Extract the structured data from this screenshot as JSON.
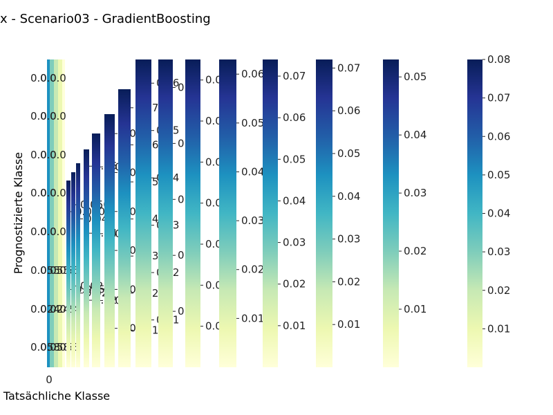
{
  "chart_data": {
    "type": "heatmap",
    "title": "x - Scenario03 - GradientBoosting",
    "xlabel": "Tatsächliche Klasse",
    "ylabel": "Prognostizierte Klasse",
    "x_tick_labels": [
      "0"
    ],
    "colormap": "YlGnBu",
    "row_cell_labels": [
      "0.0",
      "0.0",
      "0.0",
      "0.0",
      "0.0",
      "0.055",
      "0.024",
      "0.058"
    ],
    "colorbars": [
      {
        "ticks": [
          "0.025",
          "0.050"
        ],
        "max": 0.06
      },
      {
        "ticks": [
          "0.025",
          "0.050"
        ],
        "max": 0.06
      },
      {
        "ticks": [
          "0.02",
          "0.04"
        ],
        "max": 0.055
      },
      {
        "ticks": [
          "0.02",
          "0.04",
          "0.06"
        ],
        "max": 0.065
      },
      {
        "ticks": [
          "0.02",
          "0.04",
          "0.06"
        ],
        "max": 0.07
      },
      {
        "ticks": [
          "0.01",
          "0.02",
          "0.03",
          "0.04",
          "0.05",
          "0.06"
        ],
        "max": 0.065
      },
      {
        "ticks": [
          "0.01",
          "0.02",
          "0.03",
          "0.04",
          "0.05",
          "0.06",
          "0.07"
        ],
        "max": 0.075
      },
      {
        "ticks": [
          "0.01",
          "0.02",
          "0.03",
          "0.04",
          "0.05",
          "0.06"
        ],
        "max": 0.065
      },
      {
        "ticks": [
          "0.01",
          "0.02",
          "0.03",
          "0.04",
          "0.05"
        ],
        "max": 0.055
      },
      {
        "ticks": [
          "0.01",
          "0.02",
          "0.03",
          "0.04",
          "0.05",
          "0.06",
          "0.07"
        ],
        "max": 0.075
      },
      {
        "ticks": [
          "0.01",
          "0.02",
          "0.03",
          "0.04",
          "0.05",
          "0.06"
        ],
        "max": 0.063
      },
      {
        "ticks": [
          "0.01",
          "0.02",
          "0.03",
          "0.04",
          "0.05",
          "0.06",
          "0.07"
        ],
        "max": 0.074
      },
      {
        "ticks": [
          "0.01",
          "0.02",
          "0.03",
          "0.04",
          "0.05",
          "0.06",
          "0.07"
        ],
        "max": 0.072
      },
      {
        "ticks": [
          "0.01",
          "0.02",
          "0.03",
          "0.04",
          "0.05"
        ],
        "max": 0.053
      },
      {
        "ticks": [
          "0.01",
          "0.02",
          "0.03",
          "0.04",
          "0.05",
          "0.06",
          "0.07",
          "0.08"
        ],
        "max": 0.08
      }
    ]
  },
  "colors": {
    "ramp": [
      "#ffffd9",
      "#edf8b1",
      "#c7e9b4",
      "#7fcdbb",
      "#41b6c4",
      "#1d91c0",
      "#225ea8",
      "#253494",
      "#081d58"
    ]
  }
}
